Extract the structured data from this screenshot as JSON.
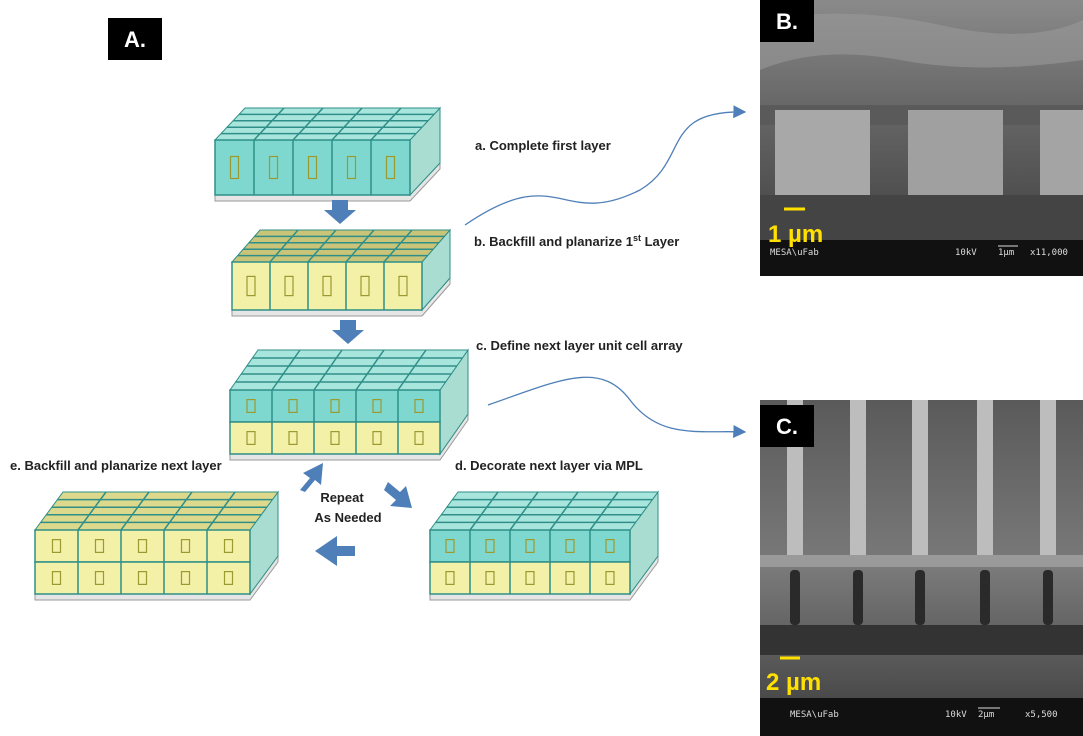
{
  "panel_a": {
    "label": "A.",
    "steps": {
      "a": "a. Complete first layer",
      "b": {
        "text": "b. Backfill and planarize 1",
        "superscript": "st",
        "after": " Layer"
      },
      "c": "c. Define next layer unit cell array",
      "d": "d. Decorate next layer via MPL",
      "e": "e. Backfill and planarize next layer"
    },
    "repeat": [
      "Repeat",
      "As Needed"
    ]
  },
  "panel_b": {
    "label": "B.",
    "scale": "1 µm",
    "info": {
      "lab": "MESA\\uFab",
      "voltage": "10kV",
      "bar": "1µm",
      "magnification": "x11,000"
    }
  },
  "panel_c": {
    "label": "C.",
    "scale": "2 µm",
    "info": {
      "lab": "MESA\\uFab",
      "voltage": "10kV",
      "bar": "2µm",
      "magnification": "x5,500"
    }
  }
}
